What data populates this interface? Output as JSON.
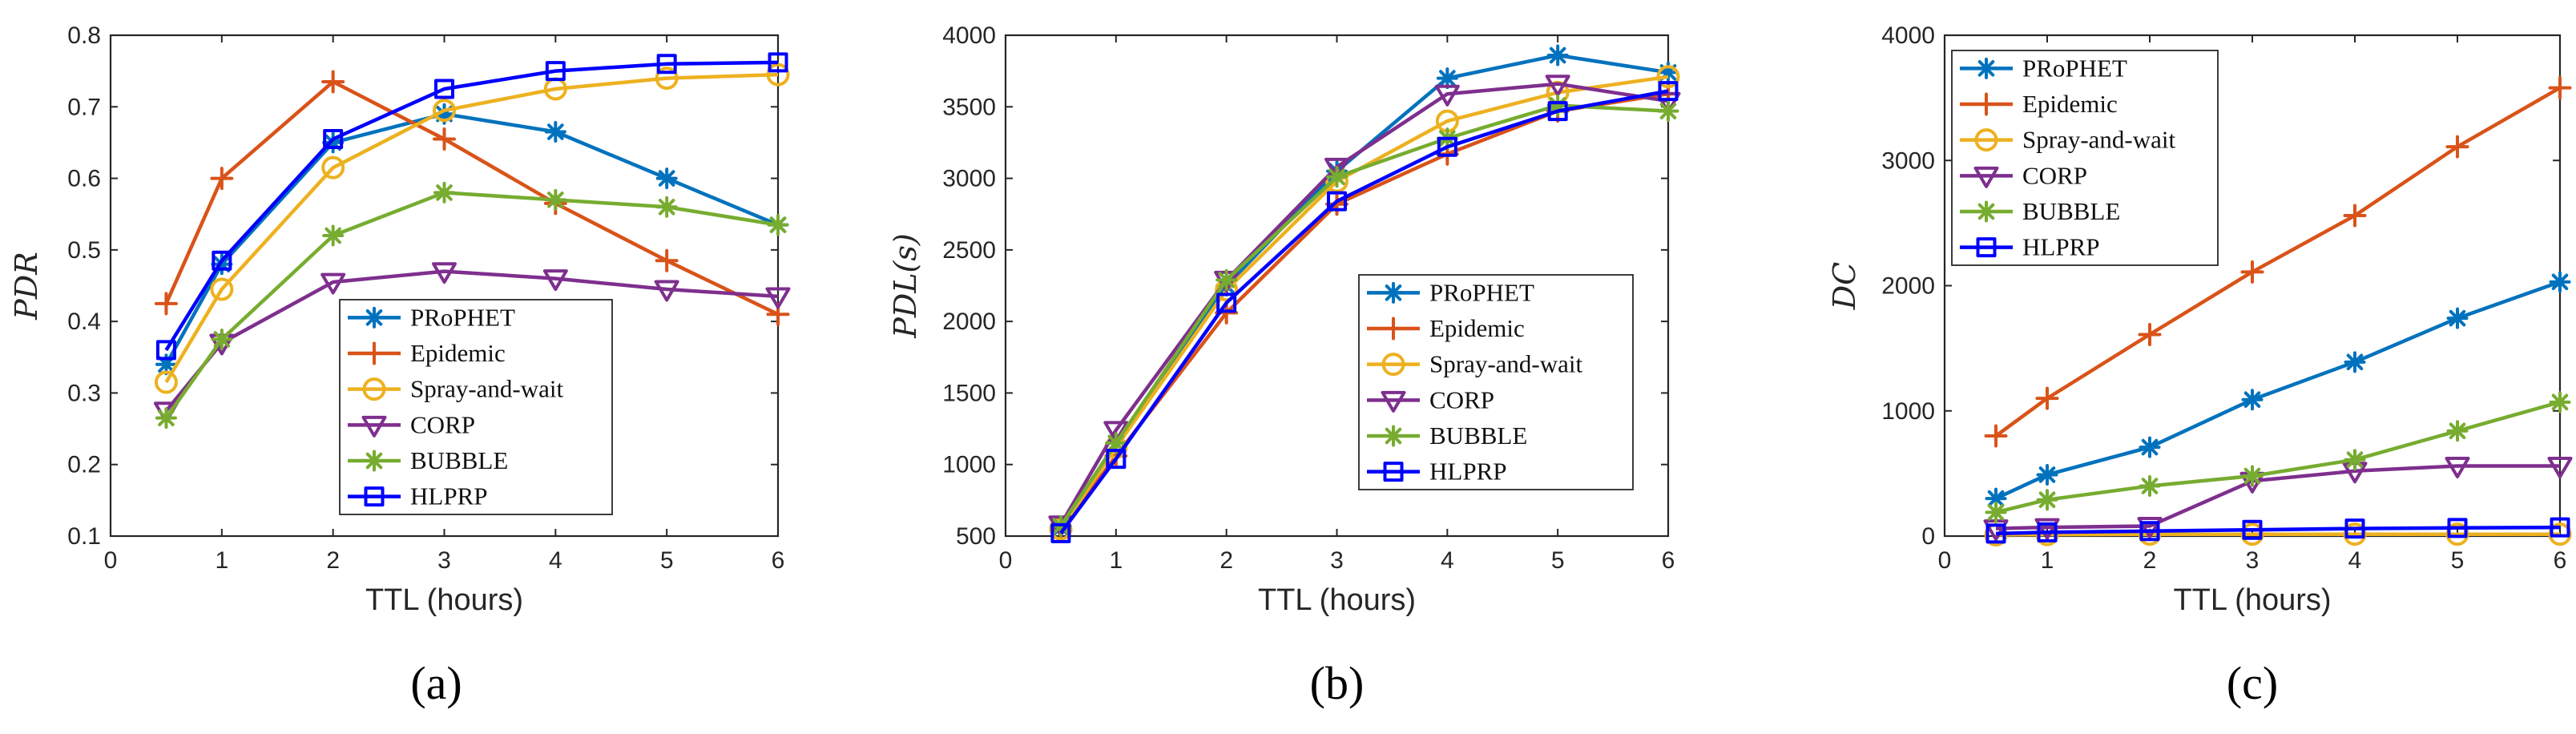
{
  "chart_data": [
    {
      "type": "line",
      "panel": "a",
      "caption": "(a)",
      "xlabel": "TTL (hours)",
      "ylabel": "PDR",
      "xlim": [
        0,
        6
      ],
      "ylim": [
        0.1,
        0.8
      ],
      "xticks": [
        0,
        1,
        2,
        3,
        4,
        5,
        6
      ],
      "yticks": [
        0.1,
        0.2,
        0.3,
        0.4,
        0.5,
        0.6,
        0.7,
        0.8
      ],
      "ytick_labels": [
        "0.1",
        "0.2",
        "0.3",
        "0.4",
        "0.5",
        "0.6",
        "0.7",
        "0.8"
      ],
      "legend_position": "center-bottom",
      "x": [
        0.5,
        1,
        2,
        3,
        4,
        5,
        6
      ],
      "series": [
        {
          "name": "PRoPHET",
          "color": "#0072BD",
          "marker": "asterisk",
          "values": [
            0.34,
            0.48,
            0.65,
            0.69,
            0.665,
            0.6,
            0.535
          ]
        },
        {
          "name": "Epidemic",
          "color": "#D95319",
          "marker": "plus",
          "values": [
            0.425,
            0.6,
            0.735,
            0.655,
            0.565,
            0.485,
            0.41
          ]
        },
        {
          "name": "Spray-and-wait",
          "color": "#EDB120",
          "marker": "circle",
          "values": [
            0.315,
            0.445,
            0.615,
            0.695,
            0.725,
            0.74,
            0.745
          ]
        },
        {
          "name": "CORP",
          "color": "#7E2F8E",
          "marker": "triangle-down",
          "values": [
            0.275,
            0.37,
            0.455,
            0.47,
            0.46,
            0.445,
            0.435
          ]
        },
        {
          "name": "BUBBLE",
          "color": "#77AC30",
          "marker": "asterisk",
          "values": [
            0.265,
            0.375,
            0.52,
            0.58,
            0.57,
            0.56,
            0.535
          ]
        },
        {
          "name": "HLPRP",
          "color": "#0000FF",
          "marker": "square",
          "values": [
            0.36,
            0.485,
            0.655,
            0.725,
            0.75,
            0.76,
            0.762
          ]
        }
      ]
    },
    {
      "type": "line",
      "panel": "b",
      "caption": "(b)",
      "xlabel": "TTL (hours)",
      "ylabel": "PDL(s)",
      "xlim": [
        0,
        6
      ],
      "ylim": [
        500,
        4000
      ],
      "xticks": [
        0,
        1,
        2,
        3,
        4,
        5,
        6
      ],
      "yticks": [
        500,
        1000,
        1500,
        2000,
        2500,
        3000,
        3500,
        4000
      ],
      "ytick_labels": [
        "500",
        "1000",
        "1500",
        "2000",
        "2500",
        "3000",
        "3500",
        "4000"
      ],
      "legend_position": "bottom-right",
      "x": [
        0.5,
        1,
        2,
        3,
        4,
        5,
        6
      ],
      "series": [
        {
          "name": "PRoPHET",
          "color": "#0072BD",
          "marker": "asterisk",
          "values": [
            560,
            1150,
            2250,
            3050,
            3700,
            3860,
            3740
          ]
        },
        {
          "name": "Epidemic",
          "color": "#D95319",
          "marker": "plus",
          "values": [
            540,
            1060,
            2060,
            2820,
            3170,
            3470,
            3590
          ]
        },
        {
          "name": "Spray-and-wait",
          "color": "#EDB120",
          "marker": "circle",
          "values": [
            550,
            1120,
            2220,
            2980,
            3400,
            3600,
            3710
          ]
        },
        {
          "name": "CORP",
          "color": "#7E2F8E",
          "marker": "triangle-down",
          "values": [
            580,
            1240,
            2290,
            3080,
            3590,
            3660,
            3540
          ]
        },
        {
          "name": "BUBBLE",
          "color": "#77AC30",
          "marker": "asterisk",
          "values": [
            570,
            1150,
            2290,
            3010,
            3280,
            3510,
            3470
          ]
        },
        {
          "name": "HLPRP",
          "color": "#0000FF",
          "marker": "square",
          "values": [
            520,
            1040,
            2130,
            2840,
            3220,
            3470,
            3610
          ]
        }
      ]
    },
    {
      "type": "line",
      "panel": "c",
      "caption": "(c)",
      "xlabel": "TTL (hours)",
      "ylabel": "DC",
      "xlim": [
        0,
        6
      ],
      "ylim": [
        0,
        4000
      ],
      "xticks": [
        0,
        1,
        2,
        3,
        4,
        5,
        6
      ],
      "yticks": [
        0,
        1000,
        2000,
        3000,
        4000
      ],
      "ytick_labels": [
        "0",
        "1000",
        "2000",
        "3000",
        "4000"
      ],
      "legend_position": "top-left",
      "x": [
        0.5,
        1,
        2,
        3,
        4,
        5,
        6
      ],
      "series": [
        {
          "name": "PRoPHET",
          "color": "#0072BD",
          "marker": "asterisk",
          "values": [
            300,
            490,
            710,
            1090,
            1390,
            1740,
            2030
          ]
        },
        {
          "name": "Epidemic",
          "color": "#D95319",
          "marker": "plus",
          "values": [
            800,
            1100,
            1610,
            2110,
            2560,
            3110,
            3580
          ]
        },
        {
          "name": "Spray-and-wait",
          "color": "#EDB120",
          "marker": "circle",
          "values": [
            10,
            12,
            15,
            15,
            15,
            15,
            15
          ]
        },
        {
          "name": "CORP",
          "color": "#7E2F8E",
          "marker": "triangle-down",
          "values": [
            60,
            70,
            80,
            440,
            520,
            560,
            560
          ]
        },
        {
          "name": "BUBBLE",
          "color": "#77AC30",
          "marker": "asterisk",
          "values": [
            190,
            290,
            400,
            480,
            610,
            840,
            1070
          ]
        },
        {
          "name": "HLPRP",
          "color": "#0000FF",
          "marker": "square",
          "values": [
            20,
            30,
            40,
            50,
            60,
            65,
            70
          ]
        }
      ]
    }
  ]
}
